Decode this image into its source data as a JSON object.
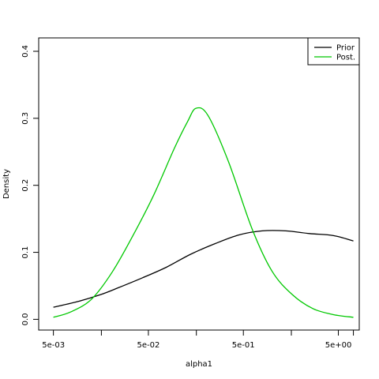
{
  "chart_data": {
    "type": "line",
    "title": "",
    "xlabel": "alpha1",
    "ylabel": "Density",
    "x_scale": "log",
    "xlim": [
      0.0035,
      8.3
    ],
    "ylim": [
      -0.016,
      0.42
    ],
    "x_ticks": [
      {
        "value": 0.005,
        "label": "5e-03"
      },
      {
        "value": 0.05,
        "label": "5e-02"
      },
      {
        "value": 0.5,
        "label": "5e-01"
      },
      {
        "value": 5,
        "label": "5e+00"
      }
    ],
    "x_minor_ticks": [
      0.016,
      0.16,
      1.6,
      7.2
    ],
    "y_ticks": [
      {
        "value": 0.0,
        "label": "0.0"
      },
      {
        "value": 0.1,
        "label": "0.1"
      },
      {
        "value": 0.2,
        "label": "0.2"
      },
      {
        "value": 0.3,
        "label": "0.3"
      },
      {
        "value": 0.4,
        "label": "0.4"
      }
    ],
    "grid": false,
    "legend": {
      "position": "top-right"
    },
    "series": [
      {
        "name": "Prior",
        "color": "#000000",
        "x": [
          0.005,
          0.0093,
          0.0158,
          0.024,
          0.0434,
          0.078,
          0.1386,
          0.2526,
          0.4502,
          0.7892,
          1.394,
          2.49,
          4.4357,
          7.2
        ],
        "y": [
          0.018,
          0.027,
          0.037,
          0.047,
          0.062,
          0.078,
          0.097,
          0.113,
          0.126,
          0.132,
          0.132,
          0.128,
          0.125,
          0.117
        ]
      },
      {
        "name": "Post.",
        "color": "#00c800",
        "x": [
          0.005,
          0.0076,
          0.0126,
          0.0209,
          0.0344,
          0.0567,
          0.0937,
          0.1292,
          0.1586,
          0.2126,
          0.3491,
          0.6174,
          1.0,
          1.6346,
          2.6936,
          4.4357,
          7.2
        ],
        "y": [
          0.003,
          0.011,
          0.03,
          0.071,
          0.125,
          0.185,
          0.255,
          0.295,
          0.315,
          0.304,
          0.235,
          0.135,
          0.072,
          0.037,
          0.016,
          0.007,
          0.003
        ]
      }
    ]
  }
}
